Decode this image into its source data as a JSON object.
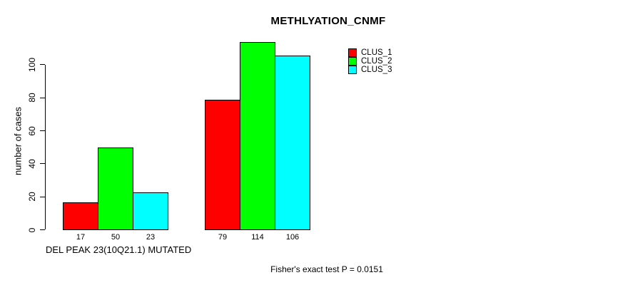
{
  "figure": {
    "title": "METHLYATION_CNMF",
    "footnote": "Fisher's exact test P = 0.0151"
  },
  "chart_data": {
    "type": "bar",
    "title": "METHLYATION_CNMF",
    "xlabel": "DEL PEAK 23(10Q21.1) MUTATED",
    "ylabel": "number of cases",
    "categories": [
      "",
      ""
    ],
    "series": [
      {
        "name": "CLUS_1",
        "color": "#ff0000",
        "values": [
          17,
          79
        ]
      },
      {
        "name": "CLUS_2",
        "color": "#00ff00",
        "values": [
          50,
          114
        ]
      },
      {
        "name": "CLUS_3",
        "color": "#00ffff",
        "values": [
          23,
          106
        ]
      }
    ],
    "bar_value_labels": [
      [
        17,
        50,
        23
      ],
      [
        79,
        114,
        106
      ]
    ],
    "yticks": [
      0,
      20,
      40,
      60,
      80,
      100
    ],
    "ylim": [
      0,
      116
    ],
    "grid": false,
    "legend": {
      "position": "top-right",
      "entries": [
        {
          "label": "CLUS_1",
          "color": "#ff0000"
        },
        {
          "label": "CLUS_2",
          "color": "#00ff00"
        },
        {
          "label": "CLUS_3",
          "color": "#00ffff"
        }
      ]
    },
    "annotation": "Fisher's exact test P = 0.0151"
  }
}
